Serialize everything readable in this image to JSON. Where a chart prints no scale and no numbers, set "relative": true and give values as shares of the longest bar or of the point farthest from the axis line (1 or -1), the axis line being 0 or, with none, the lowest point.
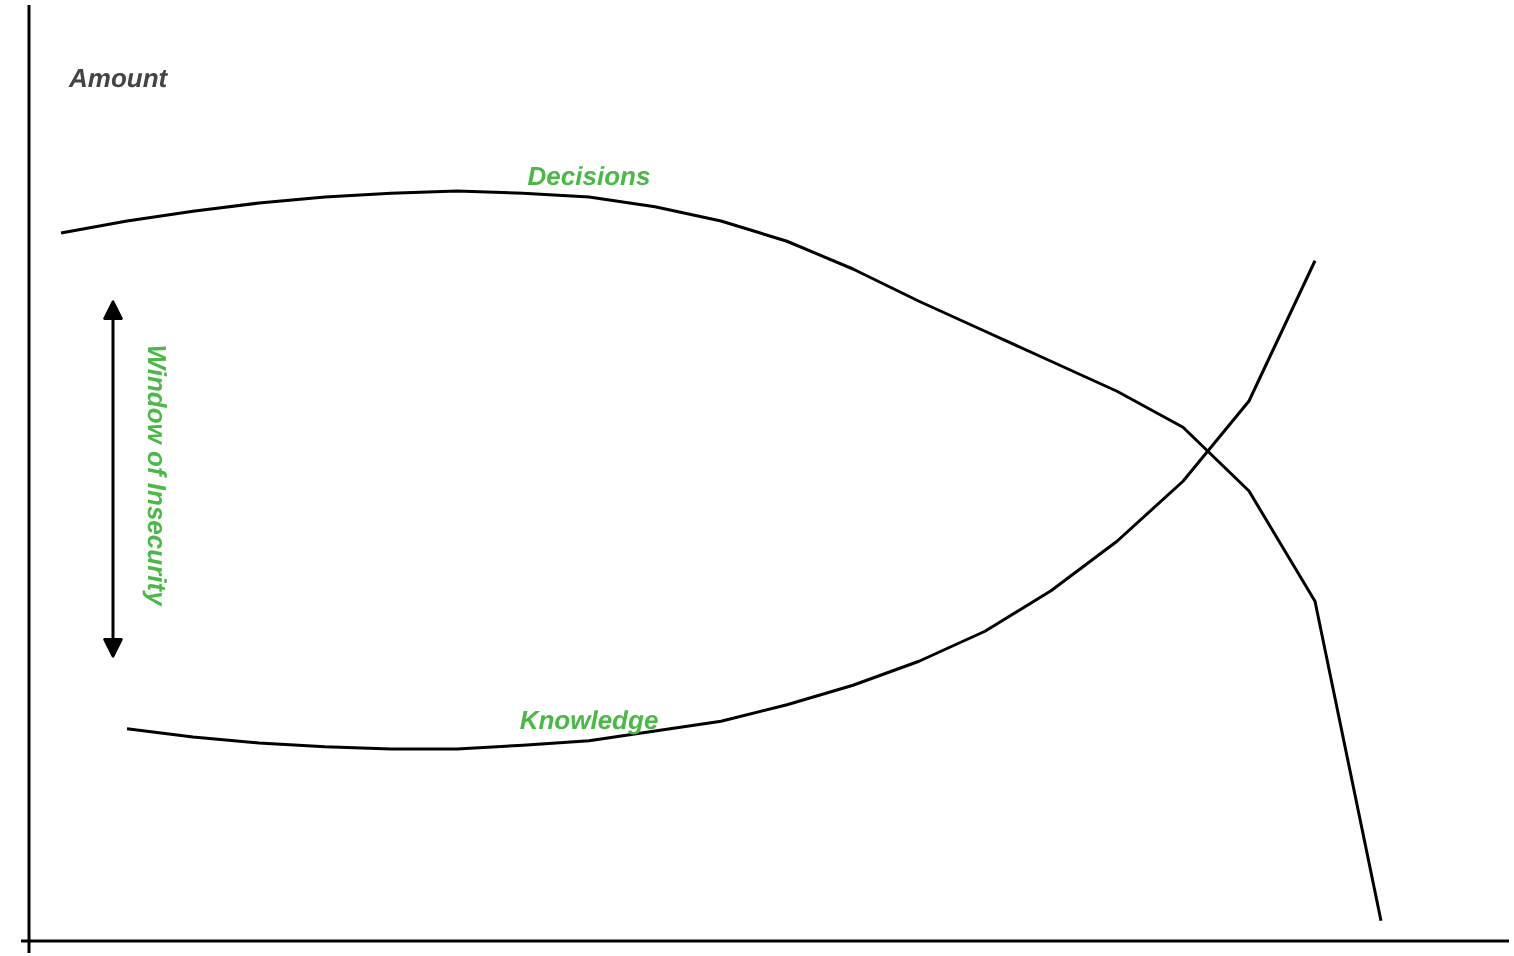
{
  "chart_data": {
    "type": "line",
    "relative": true,
    "ylabel": "Amount",
    "categories": [
      null,
      null,
      null,
      null,
      null,
      null,
      null,
      null,
      null,
      null,
      null,
      null,
      null,
      null,
      null,
      null,
      null,
      null,
      null,
      null,
      null
    ],
    "series": [
      {
        "name": "Decisions",
        "color": "#000000",
        "values": [
          0.944,
          0.96,
          0.973,
          0.984,
          0.992,
          0.997,
          1,
          0.997,
          0.992,
          0.979,
          0.96,
          0.933,
          0.896,
          0.853,
          0.813,
          0.773,
          0.733,
          0.685,
          0.6,
          0.453,
          0.027
        ]
      },
      {
        "name": "Knowledge",
        "color": "#000000",
        "values": [
          null,
          0.283,
          0.272,
          0.264,
          0.259,
          0.256,
          0.256,
          0.261,
          0.267,
          0.28,
          0.293,
          0.315,
          0.341,
          0.373,
          0.413,
          0.467,
          0.533,
          0.613,
          0.72,
          0.907,
          null
        ]
      }
    ],
    "annotations": [
      "Window of Insecurity"
    ],
    "grid": false,
    "marker": "none",
    "line_style": "solid"
  }
}
